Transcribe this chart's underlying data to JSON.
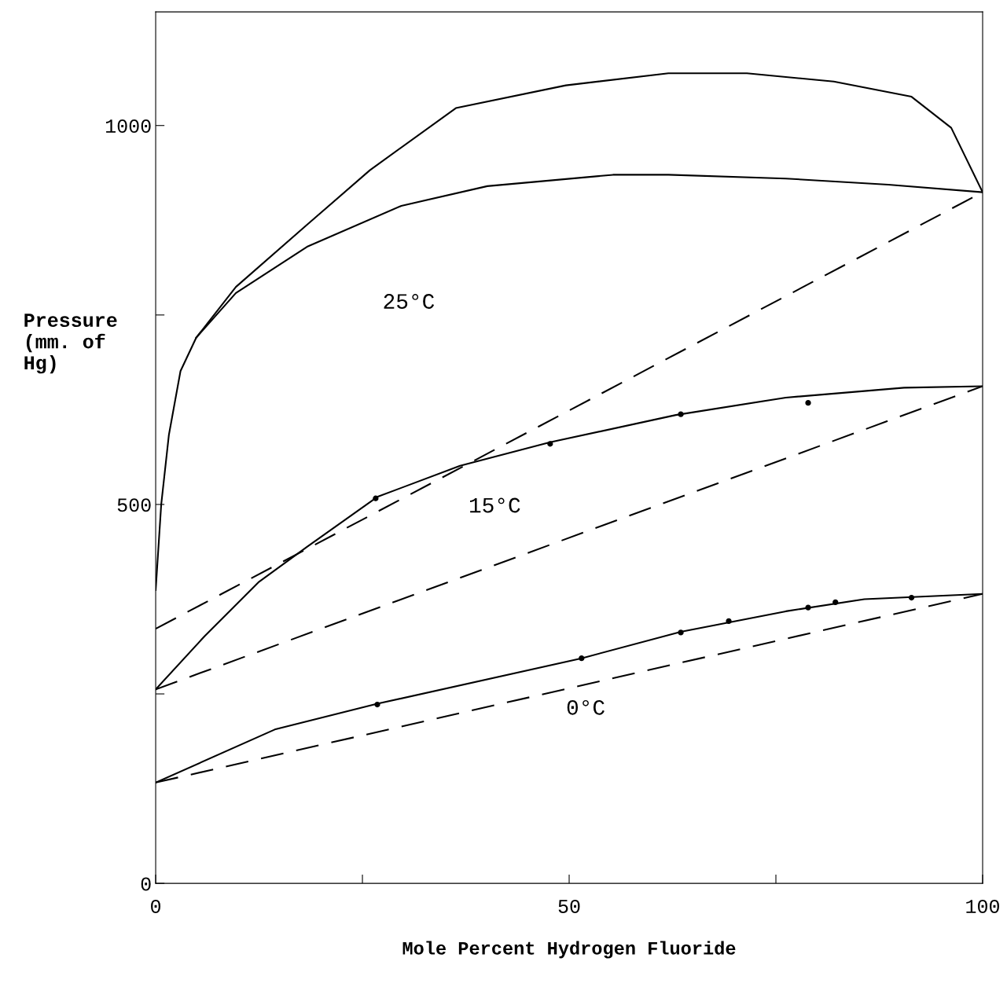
{
  "chart_data": {
    "type": "line",
    "xlabel": "Mole Percent Hydrogen Fluoride",
    "ylabel": "Pressure\n(mm. of\nHg)",
    "xlim": [
      0,
      100
    ],
    "ylim": [
      0,
      1150
    ],
    "xticks": [
      0,
      {
        "value": 25,
        "label": null
      },
      50,
      {
        "value": 75,
        "label": null
      },
      100
    ],
    "yticks": [
      0,
      {
        "value": 250,
        "label": null
      },
      500,
      {
        "value": 750,
        "label": null
      },
      1000
    ],
    "grid": false,
    "legend": false,
    "series": [
      {
        "type": "line",
        "line_style": "solid",
        "color": "#000000",
        "x": [
          0,
          0.67,
          1.6,
          3.0,
          4.9,
          9.7,
          18.3,
          25.9,
          36.3,
          49.6,
          62,
          71.5,
          82,
          91.4,
          96.2,
          100
        ],
        "values": [
          387,
          500,
          592,
          676,
          720,
          787,
          869,
          941,
          1023,
          1053,
          1069,
          1069,
          1058,
          1038,
          997,
          912
        ]
      },
      {
        "type": "line",
        "line_style": "solid",
        "color": "#000000",
        "x": [
          4.9,
          9.7,
          18.3,
          29.7,
          40.1,
          55.3,
          62,
          76.2,
          88.6,
          100
        ],
        "values": [
          720,
          779,
          840,
          894,
          920,
          935,
          935,
          930,
          922,
          912
        ]
      },
      {
        "type": "line",
        "line_style": "solid",
        "color": "#000000",
        "x": [
          0,
          5.9,
          12.5,
          18.3,
          26.8,
          36.8,
          47.7,
          62.9,
          76.2,
          90.5,
          100
        ],
        "values": [
          256,
          326,
          398,
          444,
          510,
          551,
          582,
          618,
          641,
          654,
          656
        ]
      },
      {
        "type": "line",
        "line_style": "solid",
        "color": "#000000",
        "x": [
          0,
          14.4,
          26.8,
          51.5,
          63.5,
          76.2,
          85.7,
          100
        ],
        "values": [
          133,
          203,
          237,
          297,
          332,
          359,
          375,
          382
        ]
      },
      {
        "type": "line",
        "line_style": "dashed",
        "color": "#000000",
        "x": [
          0,
          100
        ],
        "values": [
          336,
          912
        ]
      },
      {
        "type": "line",
        "line_style": "dashed",
        "color": "#000000",
        "x": [
          0,
          100
        ],
        "values": [
          256,
          656
        ]
      },
      {
        "type": "line",
        "line_style": "dashed",
        "color": "#000000",
        "x": [
          0,
          100
        ],
        "values": [
          133,
          382
        ]
      },
      {
        "type": "scatter",
        "marker": "circle",
        "color": "#000000",
        "x": [
          26.6,
          47.7,
          63.5,
          78.9
        ],
        "values": [
          508,
          580,
          619,
          634
        ]
      },
      {
        "type": "scatter",
        "marker": "circle",
        "color": "#000000",
        "x": [
          26.8,
          51.5,
          63.5,
          69.3,
          78.9,
          82.2,
          91.4
        ],
        "values": [
          236,
          297,
          331,
          346,
          364,
          371,
          377
        ]
      }
    ],
    "annotations": [
      "25°C",
      "15°C",
      "0°C"
    ]
  }
}
